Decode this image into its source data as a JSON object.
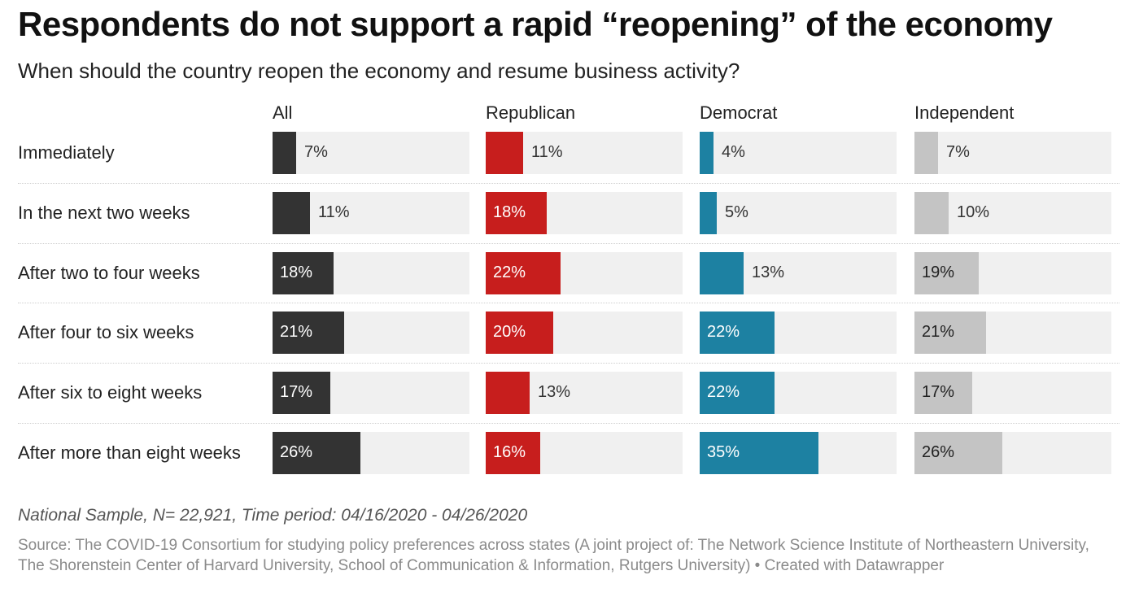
{
  "title": "Respondents do not support a rapid “reopening” of the economy",
  "subtitle": "When should the country reopen the economy and resume business activity?",
  "note": "National Sample, N= 22,921, Time period: 04/16/2020 - 04/26/2020",
  "source": "Source: The COVID-19 Consortium for studying policy preferences across states (A joint project of: The Network Science Institute of Northeastern University, The Shorenstein Center of Harvard University, School of Communication & Information, Rutgers University) • Created with Datawrapper",
  "chart_data": {
    "type": "bar",
    "categories": [
      "Immediately",
      "In the next two weeks",
      "After two to four weeks",
      "After four to six weeks",
      "After six to eight weeks",
      "After more than eight weeks"
    ],
    "series": [
      {
        "name": "All",
        "color": "#333333",
        "values": [
          7,
          11,
          18,
          21,
          17,
          26
        ],
        "labels": [
          "7%",
          "11%",
          "18%",
          "21%",
          "17%",
          "26%"
        ]
      },
      {
        "name": "Republican",
        "color": "#c71e1d",
        "values": [
          11,
          18,
          22,
          20,
          13,
          16
        ],
        "labels": [
          "11%",
          "18%",
          "22%",
          "20%",
          "13%",
          "16%"
        ]
      },
      {
        "name": "Democrat",
        "color": "#1d81a2",
        "values": [
          4,
          5,
          13,
          22,
          22,
          35
        ],
        "labels": [
          "4%",
          "5%",
          "13%",
          "22%",
          "22%",
          "35%"
        ]
      },
      {
        "name": "Independent",
        "color": "#c4c4c4",
        "values": [
          7,
          10,
          19,
          21,
          17,
          26
        ],
        "labels": [
          "7%",
          "10%",
          "19%",
          "21%",
          "17%",
          "26%"
        ]
      }
    ],
    "xlim": [
      0,
      58
    ]
  }
}
